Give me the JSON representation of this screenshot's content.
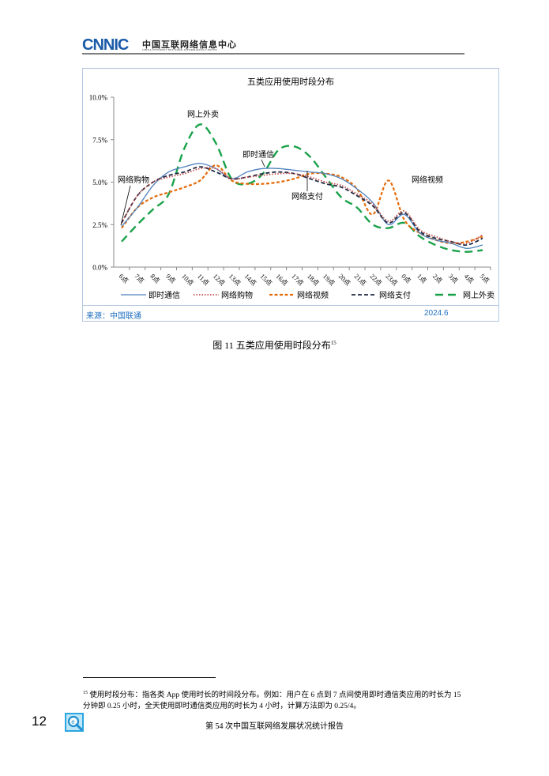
{
  "header": {
    "logo": "CNNIC",
    "org_name_cn": "中国互联网络信息中心",
    "org_name_en": "CHINA INTERNET NETWORK INFORMATION CENTER"
  },
  "chart": {
    "source_label": "来源：中国联通",
    "source_date": "2024.6"
  },
  "caption": {
    "label": "图  11    五类应用使用时段分布",
    "footnote_ref": "15"
  },
  "footnote": {
    "number": "15",
    "text": "使用时段分布：指各类 App 使用时长的时间段分布。例如：用户在 6 点到 7 点间使用即时通信类应用的时长为 15 分钟即 0.25 小时，全天使用即时通信类应用的时长为 4 小时，计算方法即为 0.25/4。"
  },
  "footer": {
    "page_number": "12",
    "report_title": "第 54 次中国互联网络发展状况统计报告"
  },
  "chart_data": {
    "type": "line",
    "title": "五类应用使用时段分布",
    "xlabel": "",
    "ylabel": "",
    "ylim": [
      0,
      10
    ],
    "yticks": [
      "0.0%",
      "2.5%",
      "5.0%",
      "7.5%",
      "10.0%"
    ],
    "grid": false,
    "legend_position": "bottom",
    "categories": [
      "6点",
      "7点",
      "8点",
      "9点",
      "10点",
      "11点",
      "12点",
      "13点",
      "14点",
      "15点",
      "16点",
      "17点",
      "18点",
      "19点",
      "20点",
      "21点",
      "22点",
      "23点",
      "0点",
      "1点",
      "2点",
      "3点",
      "4点",
      "5点"
    ],
    "series": [
      {
        "name": "即时通信",
        "color": "#4f81bd",
        "style": "solid",
        "values": [
          2.4,
          3.5,
          4.8,
          5.6,
          5.9,
          6.1,
          5.8,
          5.2,
          5.6,
          5.8,
          5.8,
          5.7,
          5.6,
          5.5,
          5.2,
          4.6,
          3.8,
          2.5,
          3.1,
          2.0,
          1.6,
          1.4,
          1.1,
          1.3
        ]
      },
      {
        "name": "网络购物",
        "color": "#c0504d",
        "style": "dotted",
        "values": [
          2.6,
          4.2,
          5.0,
          5.3,
          5.5,
          5.8,
          5.8,
          5.2,
          5.3,
          5.4,
          5.5,
          5.5,
          5.3,
          5.0,
          4.8,
          4.3,
          3.7,
          2.7,
          3.3,
          2.2,
          1.8,
          1.5,
          1.4,
          1.9
        ]
      },
      {
        "name": "网络视频",
        "color": "#e46c0a",
        "style": "dashed",
        "values": [
          2.3,
          3.5,
          4.1,
          4.4,
          4.7,
          5.1,
          6.0,
          5.1,
          4.9,
          4.9,
          5.0,
          5.2,
          5.5,
          5.5,
          5.3,
          4.6,
          3.1,
          5.1,
          2.8,
          2.0,
          1.6,
          1.4,
          1.5,
          1.8
        ]
      },
      {
        "name": "网络支付",
        "color": "#1f2a44",
        "style": "dash",
        "values": [
          2.6,
          4.2,
          5.0,
          5.4,
          5.6,
          5.9,
          5.6,
          5.2,
          5.3,
          5.5,
          5.6,
          5.5,
          5.2,
          4.9,
          4.7,
          4.2,
          3.6,
          2.6,
          3.2,
          2.1,
          1.7,
          1.5,
          1.3,
          1.7
        ]
      },
      {
        "name": "网上外卖",
        "color": "#1aa24a",
        "style": "longdash",
        "values": [
          1.5,
          2.5,
          3.4,
          4.3,
          7.0,
          8.4,
          7.3,
          5.2,
          4.9,
          5.5,
          6.9,
          7.1,
          6.5,
          5.3,
          4.1,
          3.5,
          2.5,
          2.3,
          2.6,
          1.8,
          1.3,
          1.0,
          0.9,
          1.0
        ]
      }
    ],
    "annotations": [
      {
        "text": "网上外卖",
        "x": "11点",
        "y": 9.0
      },
      {
        "text": "即时通信",
        "x": "15点",
        "y": 6.5
      },
      {
        "text": "网络购物",
        "x": "6点",
        "y": 5.0
      },
      {
        "text": "网络支付",
        "x": "18点",
        "y": 4.3
      },
      {
        "text": "网络视频",
        "x": "0点",
        "y": 5.0
      }
    ]
  }
}
